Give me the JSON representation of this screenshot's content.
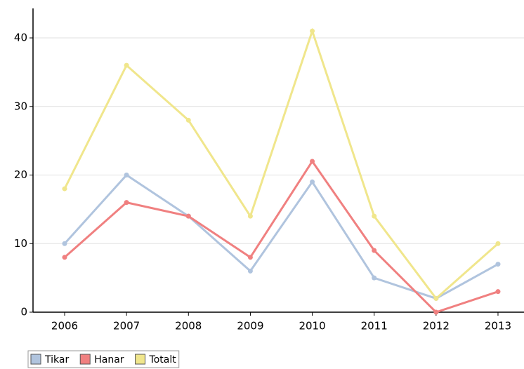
{
  "chart_data": {
    "type": "line",
    "categories": [
      "2006",
      "2007",
      "2008",
      "2009",
      "2010",
      "2011",
      "2012",
      "2013"
    ],
    "series": [
      {
        "name": "Tikar",
        "color": "#b0c4de",
        "values": [
          10,
          20,
          14,
          6,
          19,
          5,
          2,
          7
        ]
      },
      {
        "name": "Hanar",
        "color": "#f08080",
        "values": [
          8,
          16,
          14,
          8,
          22,
          9,
          0,
          3
        ]
      },
      {
        "name": "Totalt",
        "color": "#f0e68c",
        "values": [
          18,
          36,
          28,
          14,
          41,
          14,
          2,
          10
        ]
      }
    ],
    "ylim": [
      0,
      44.3
    ],
    "yticks": [
      0,
      10,
      20,
      30,
      40
    ],
    "grid": true,
    "legend": "bottom-left"
  }
}
